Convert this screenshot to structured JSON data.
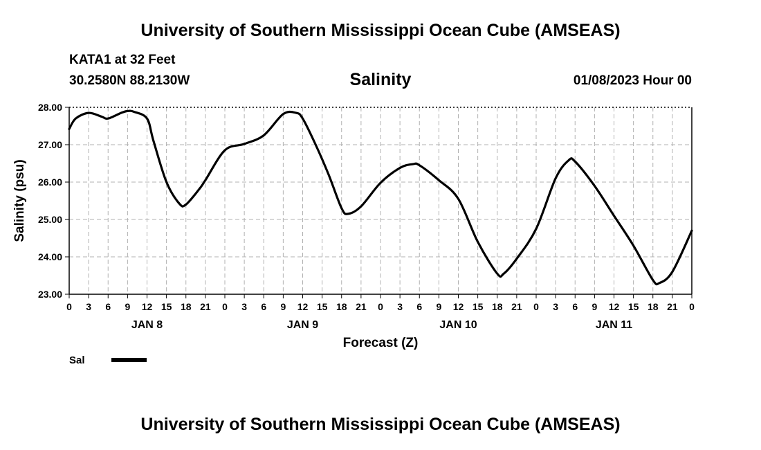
{
  "header": {
    "title": "University of Southern Mississippi Ocean Cube (AMSEAS)",
    "station": "KATA1 at 32 Feet",
    "coords": "30.2580N  88.2130W",
    "datetime": "01/08/2023 Hour 00"
  },
  "footer": {
    "title": "University of Southern Mississippi Ocean Cube (AMSEAS)"
  },
  "chart_data": {
    "type": "line",
    "title": "Salinity",
    "xlabel": "Forecast (Z)",
    "ylabel": "Salinity (psu)",
    "ylim": [
      23.0,
      28.0
    ],
    "xlim": [
      0,
      96
    ],
    "y_ticks": [
      "23.00",
      "24.00",
      "25.00",
      "26.00",
      "27.00",
      "28.00"
    ],
    "x_tick_labels": [
      "0",
      "3",
      "6",
      "9",
      "12",
      "15",
      "18",
      "21",
      "0",
      "3",
      "6",
      "9",
      "12",
      "15",
      "18",
      "21",
      "0",
      "3",
      "6",
      "9",
      "12",
      "15",
      "18",
      "21",
      "0",
      "3",
      "6",
      "9",
      "12",
      "15",
      "18",
      "21",
      "0"
    ],
    "day_labels": [
      {
        "label": "JAN 8",
        "hour": 12
      },
      {
        "label": "JAN 9",
        "hour": 36
      },
      {
        "label": "JAN 10",
        "hour": 60
      },
      {
        "label": "JAN 11",
        "hour": 84
      }
    ],
    "grid": true,
    "legend_position": "bottom-left",
    "series": [
      {
        "name": "Sal",
        "color": "#000000",
        "x": [
          0,
          1,
          3,
          5,
          6,
          8,
          9,
          10,
          12,
          13,
          15,
          17,
          18,
          20,
          21,
          24,
          27,
          30,
          33,
          35,
          36,
          38,
          40,
          42,
          43,
          45,
          48,
          51,
          53,
          54,
          57,
          60,
          63,
          66,
          67,
          69,
          72,
          75,
          77,
          78,
          81,
          84,
          87,
          90,
          91,
          93,
          96
        ],
        "values": [
          27.42,
          27.7,
          27.85,
          27.75,
          27.7,
          27.85,
          27.9,
          27.88,
          27.7,
          27.1,
          26.0,
          25.42,
          25.4,
          25.8,
          26.05,
          26.85,
          27.02,
          27.25,
          27.82,
          27.85,
          27.7,
          27.0,
          26.2,
          25.3,
          25.15,
          25.35,
          25.98,
          26.38,
          26.48,
          26.45,
          26.05,
          25.55,
          24.4,
          23.55,
          23.55,
          23.95,
          24.75,
          26.1,
          26.58,
          26.55,
          25.9,
          25.1,
          24.3,
          23.38,
          23.3,
          23.6,
          24.7
        ]
      }
    ]
  }
}
